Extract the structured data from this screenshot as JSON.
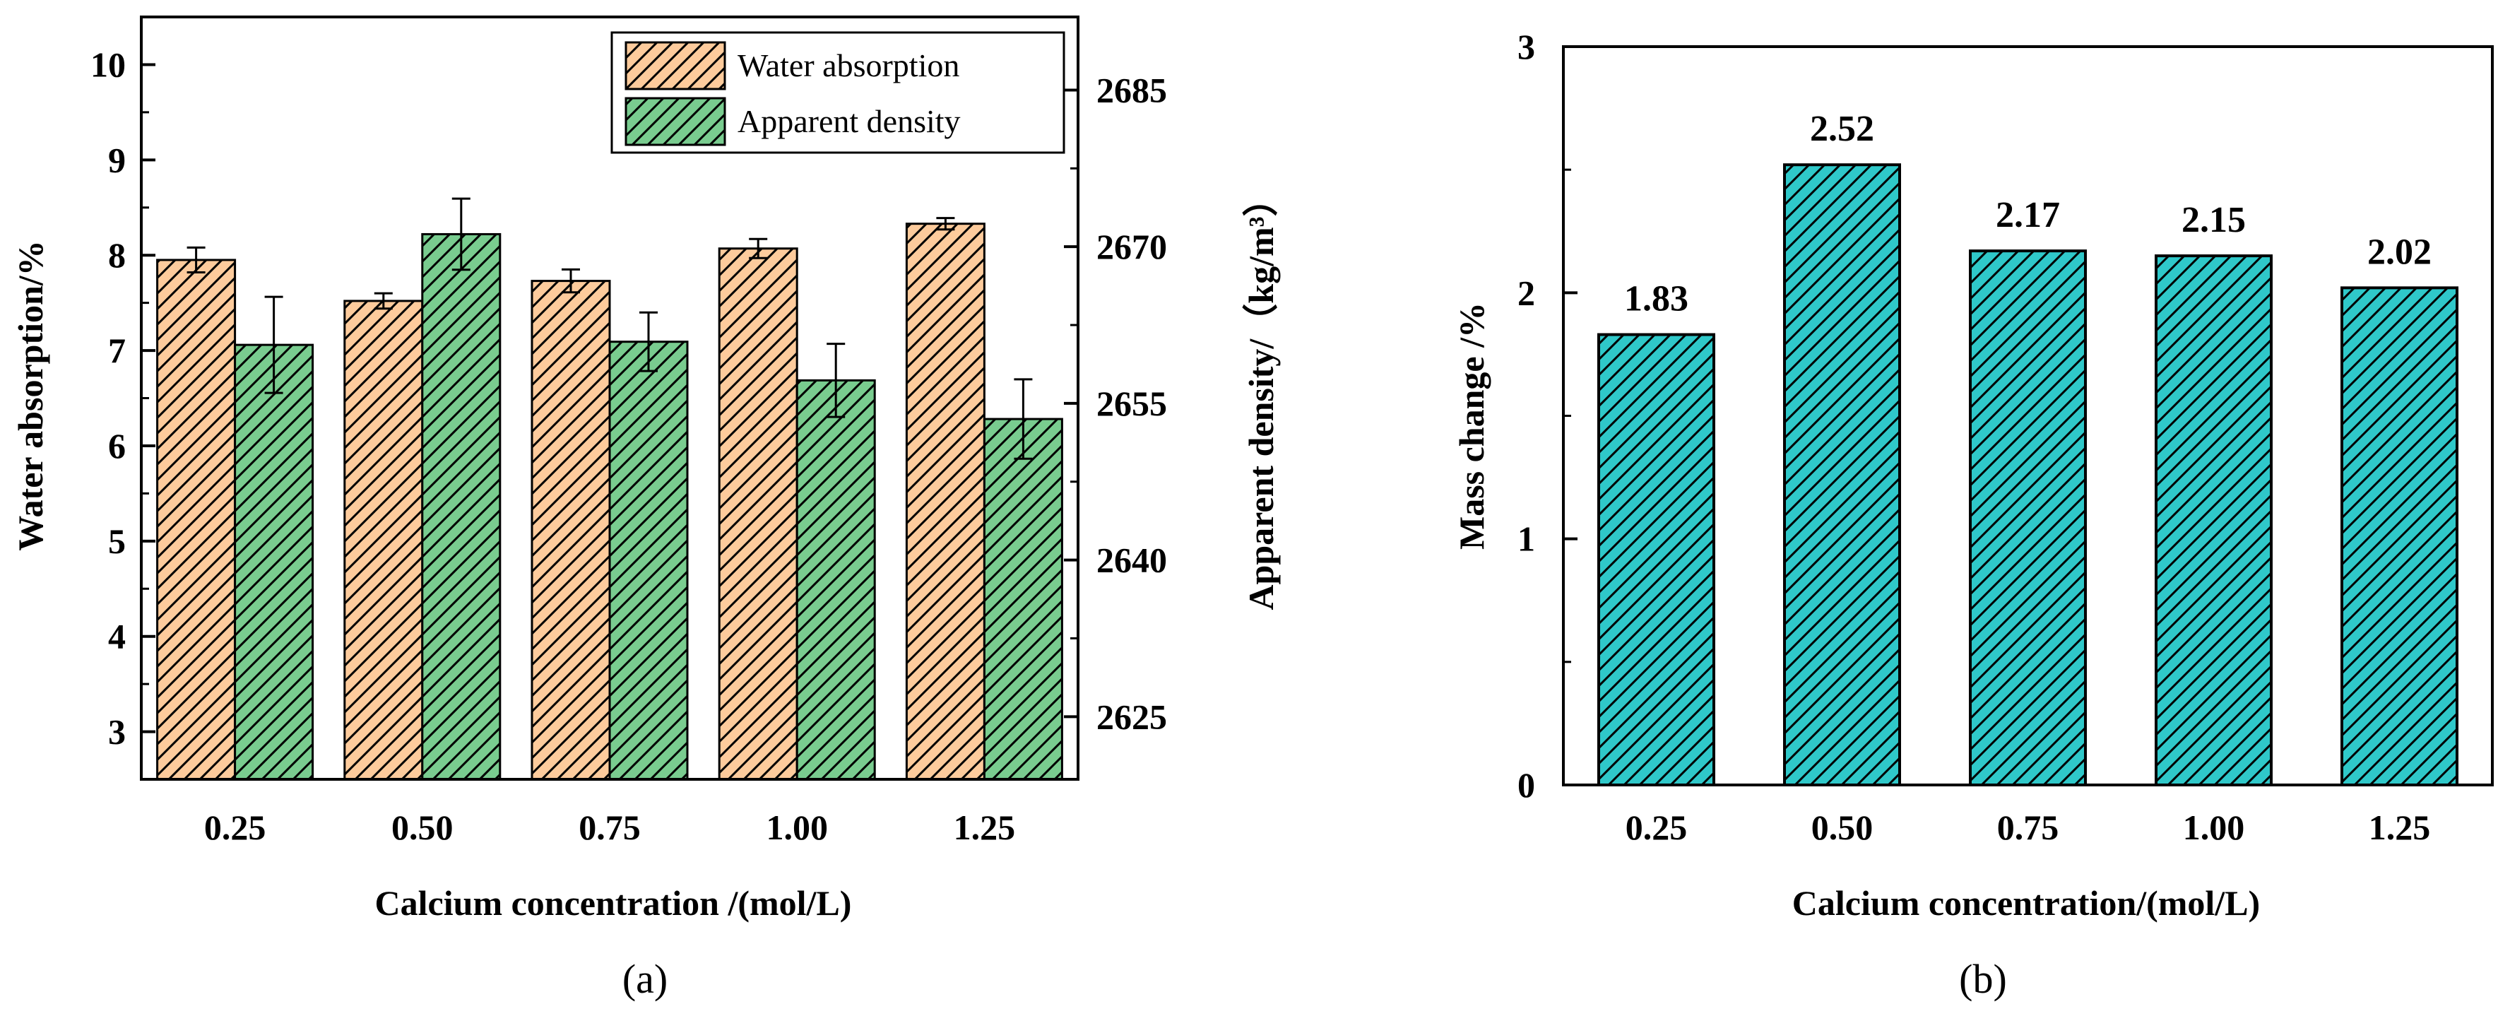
{
  "chart_data": [
    {
      "type": "bar",
      "panel_label": "(a)",
      "categories": [
        "0.25",
        "0.50",
        "0.75",
        "1.00",
        "1.25"
      ],
      "xlabel": "Calcium concentration /(mol/L)",
      "ylabel": "Water absorption/%",
      "ylim": [
        2.5,
        10.5
      ],
      "yticks": [
        "3",
        "4",
        "5",
        "6",
        "7",
        "8",
        "9",
        "10"
      ],
      "y2label": "Apparent density/（kg/m³）",
      "y2lim": [
        2619,
        2692
      ],
      "y2ticks": [
        "2625",
        "2640",
        "2655",
        "2670",
        "2685"
      ],
      "legend_position": "top-right",
      "series": [
        {
          "name": "Water absorption",
          "axis": "left",
          "color": "#FDCB9C",
          "values": [
            7.95,
            7.52,
            7.73,
            8.07,
            8.33
          ],
          "errors": [
            0.13,
            0.08,
            0.12,
            0.1,
            0.06
          ]
        },
        {
          "name": "Apparent density",
          "axis": "right",
          "color": "#79CC8F",
          "values": [
            2660.6,
            2671.2,
            2660.9,
            2657.2,
            2653.5
          ],
          "errors": [
            4.6,
            3.4,
            2.8,
            3.5,
            3.8
          ]
        }
      ]
    },
    {
      "type": "bar",
      "panel_label": "(b)",
      "categories": [
        "0.25",
        "0.50",
        "0.75",
        "1.00",
        "1.25"
      ],
      "xlabel": "Calcium concentration/(mol/L)",
      "ylabel": "Mass change /%",
      "ylim": [
        0,
        3
      ],
      "yticks": [
        "0",
        "1",
        "2",
        "3"
      ],
      "series": [
        {
          "color": "#2FC8C9",
          "values": [
            1.83,
            2.52,
            2.17,
            2.15,
            2.02
          ],
          "labels": [
            "1.83",
            "2.52",
            "2.17",
            "2.15",
            "2.02"
          ]
        }
      ]
    }
  ]
}
